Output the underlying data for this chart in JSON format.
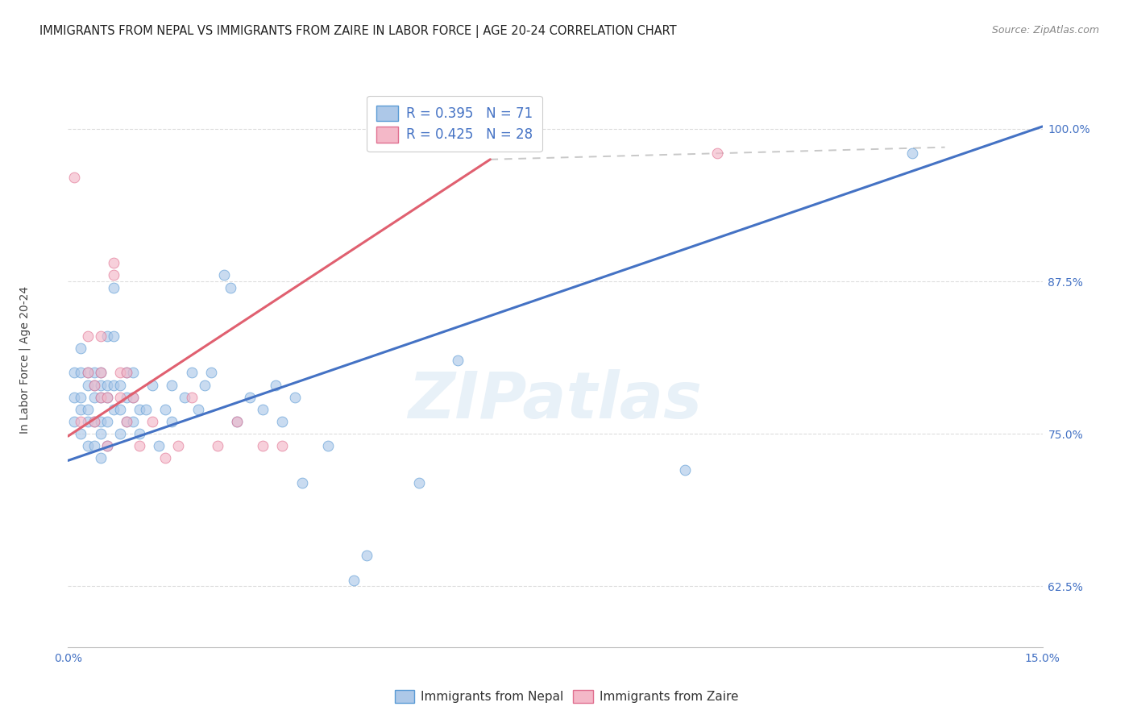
{
  "title": "IMMIGRANTS FROM NEPAL VS IMMIGRANTS FROM ZAIRE IN LABOR FORCE | AGE 20-24 CORRELATION CHART",
  "source": "Source: ZipAtlas.com",
  "ylabel": "In Labor Force | Age 20-24",
  "xlim": [
    0.0,
    0.15
  ],
  "ylim": [
    0.575,
    1.035
  ],
  "y_tick_vals": [
    0.625,
    0.75,
    0.875,
    1.0
  ],
  "y_tick_labels": [
    "62.5%",
    "75.0%",
    "87.5%",
    "100.0%"
  ],
  "nepal_R": 0.395,
  "nepal_N": 71,
  "zaire_R": 0.425,
  "zaire_N": 28,
  "nepal_color": "#adc8e8",
  "nepal_edge_color": "#5b9bd5",
  "zaire_color": "#f4b8c8",
  "zaire_edge_color": "#e07090",
  "nepal_line_color": "#4472c4",
  "zaire_line_color": "#e06070",
  "dashed_color": "#c8c8c8",
  "nepal_x": [
    0.001,
    0.001,
    0.001,
    0.002,
    0.002,
    0.002,
    0.002,
    0.002,
    0.003,
    0.003,
    0.003,
    0.003,
    0.003,
    0.004,
    0.004,
    0.004,
    0.004,
    0.004,
    0.005,
    0.005,
    0.005,
    0.005,
    0.005,
    0.005,
    0.006,
    0.006,
    0.006,
    0.006,
    0.006,
    0.007,
    0.007,
    0.007,
    0.007,
    0.008,
    0.008,
    0.008,
    0.009,
    0.009,
    0.009,
    0.01,
    0.01,
    0.01,
    0.011,
    0.011,
    0.012,
    0.013,
    0.014,
    0.015,
    0.016,
    0.016,
    0.018,
    0.019,
    0.02,
    0.021,
    0.022,
    0.024,
    0.025,
    0.026,
    0.028,
    0.03,
    0.032,
    0.033,
    0.035,
    0.036,
    0.04,
    0.044,
    0.046,
    0.054,
    0.06,
    0.095,
    0.13
  ],
  "nepal_y": [
    0.76,
    0.78,
    0.8,
    0.75,
    0.77,
    0.78,
    0.8,
    0.82,
    0.74,
    0.76,
    0.77,
    0.79,
    0.8,
    0.74,
    0.76,
    0.78,
    0.79,
    0.8,
    0.73,
    0.75,
    0.76,
    0.78,
    0.79,
    0.8,
    0.74,
    0.76,
    0.78,
    0.79,
    0.83,
    0.77,
    0.79,
    0.83,
    0.87,
    0.75,
    0.77,
    0.79,
    0.76,
    0.78,
    0.8,
    0.76,
    0.78,
    0.8,
    0.75,
    0.77,
    0.77,
    0.79,
    0.74,
    0.77,
    0.76,
    0.79,
    0.78,
    0.8,
    0.77,
    0.79,
    0.8,
    0.88,
    0.87,
    0.76,
    0.78,
    0.77,
    0.79,
    0.76,
    0.78,
    0.71,
    0.74,
    0.63,
    0.65,
    0.71,
    0.81,
    0.72,
    0.98
  ],
  "zaire_x": [
    0.001,
    0.002,
    0.003,
    0.003,
    0.004,
    0.004,
    0.005,
    0.005,
    0.005,
    0.006,
    0.006,
    0.007,
    0.007,
    0.008,
    0.008,
    0.009,
    0.009,
    0.01,
    0.011,
    0.013,
    0.015,
    0.017,
    0.019,
    0.023,
    0.026,
    0.03,
    0.033,
    0.1
  ],
  "zaire_y": [
    0.96,
    0.76,
    0.8,
    0.83,
    0.76,
    0.79,
    0.78,
    0.8,
    0.83,
    0.74,
    0.78,
    0.88,
    0.89,
    0.78,
    0.8,
    0.76,
    0.8,
    0.78,
    0.74,
    0.76,
    0.73,
    0.74,
    0.78,
    0.74,
    0.76,
    0.74,
    0.74,
    0.98
  ],
  "nepal_trend": [
    0.0,
    0.728,
    0.15,
    1.002
  ],
  "zaire_trend": [
    0.0,
    0.748,
    0.065,
    0.975
  ],
  "dashed_trend": [
    0.065,
    0.975,
    0.135,
    0.985
  ],
  "watermark_text": "ZIPatlas",
  "bg_color": "#ffffff",
  "grid_color": "#dddddd",
  "marker_size": 85,
  "marker_alpha": 0.65,
  "title_color": "#222222",
  "source_color": "#888888",
  "tick_color": "#4472c4",
  "label_color": "#444444"
}
